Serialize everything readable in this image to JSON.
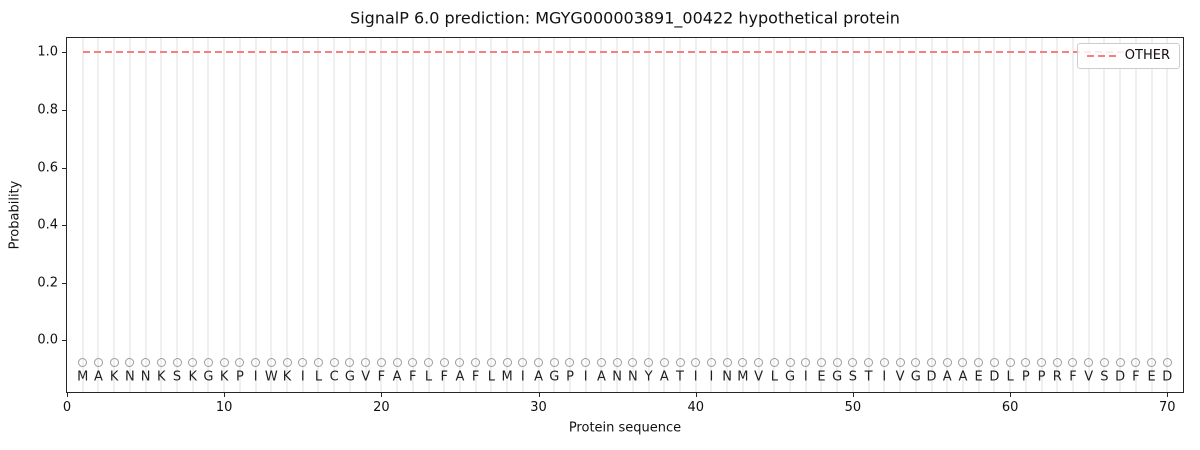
{
  "chart_data": {
    "type": "line",
    "title": "SignalP 6.0 prediction: MGYG000003891_00422 hypothetical protein",
    "xlabel": "Protein sequence",
    "ylabel": "Probability",
    "xlim": [
      0,
      71
    ],
    "ylim": [
      -0.18,
      1.05
    ],
    "x_ticks": [
      {
        "v": 0,
        "label": "0"
      },
      {
        "v": 10,
        "label": "10"
      },
      {
        "v": 20,
        "label": "20"
      },
      {
        "v": 30,
        "label": "30"
      },
      {
        "v": 40,
        "label": "40"
      },
      {
        "v": 50,
        "label": "50"
      },
      {
        "v": 60,
        "label": "60"
      },
      {
        "v": 70,
        "label": "70"
      }
    ],
    "y_ticks": [
      {
        "v": 0.0,
        "label": "0.0"
      },
      {
        "v": 0.2,
        "label": "0.2"
      },
      {
        "v": 0.4,
        "label": "0.4"
      },
      {
        "v": 0.6,
        "label": "0.6"
      },
      {
        "v": 0.8,
        "label": "0.8"
      },
      {
        "v": 1.0,
        "label": "1.0"
      }
    ],
    "grid": "vertical line at every residue position 1-70",
    "legend": {
      "position": "upper right",
      "entries": [
        {
          "label": "OTHER",
          "color": "#f5807f",
          "style": "dashed"
        }
      ]
    },
    "series": [
      {
        "name": "OTHER",
        "style": "dashed",
        "color": "#f5807f",
        "x_range": [
          1,
          70
        ],
        "constant_value": 1.0
      }
    ],
    "sequence": "MAKNNKSKGKPIWKILCGVFAFLFAFLMIAGPIANNYATIINMVLGIEGSTIVGDAAEDLPPRFVSDFED",
    "sequence_markers": {
      "shape": "open-circle",
      "edge_color": "#9c9c9c",
      "y_value": -0.076,
      "letter_y_value": -0.128
    },
    "colors": {
      "other_line": "#f5807f",
      "gridline": "#efefef",
      "marker_edge": "#9c9c9c",
      "spine": "#262626"
    }
  }
}
